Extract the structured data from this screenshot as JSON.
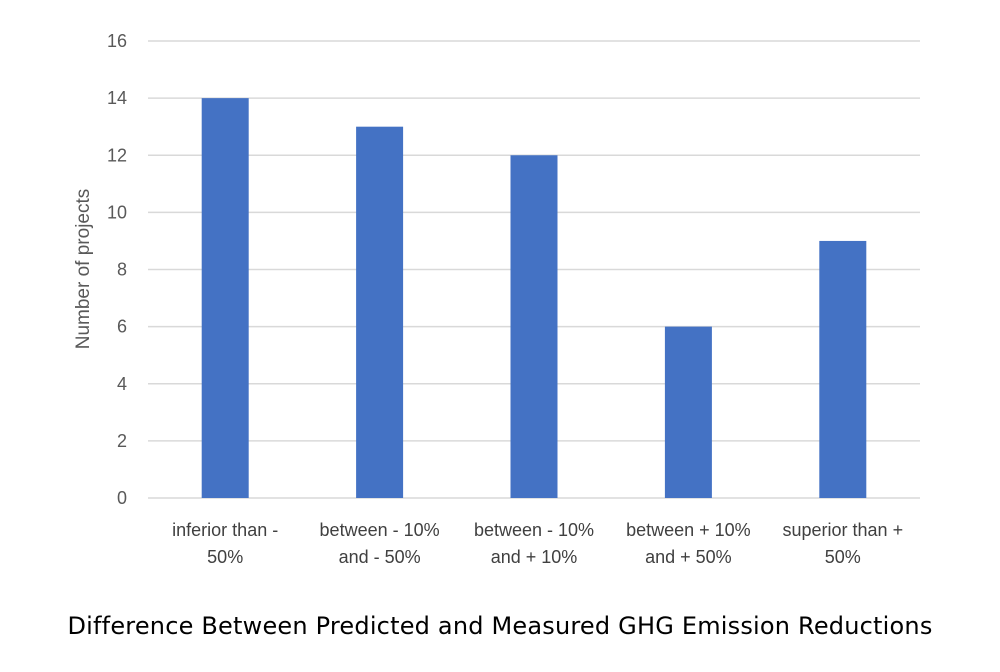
{
  "chart_data": {
    "type": "bar",
    "title": "Difference Between Predicted and Measured GHG Emission Reductions",
    "xlabel": "",
    "ylabel": "Number of projects",
    "ylim": [
      0,
      16
    ],
    "yticks": [
      0,
      2,
      4,
      6,
      8,
      10,
      12,
      14,
      16
    ],
    "categories": [
      [
        "inferior than -",
        "50%"
      ],
      [
        "between - 10%",
        "and - 50%"
      ],
      [
        "between - 10%",
        "and + 10%"
      ],
      [
        "between + 10%",
        "and + 50%"
      ],
      [
        "superior than +",
        "50%"
      ]
    ],
    "values": [
      14,
      13,
      12,
      6,
      9
    ],
    "grid": true,
    "legend": "none",
    "colors": {
      "bar": "#4472C4",
      "grid": "#D9D9D9",
      "tick_text": "#595959"
    }
  }
}
